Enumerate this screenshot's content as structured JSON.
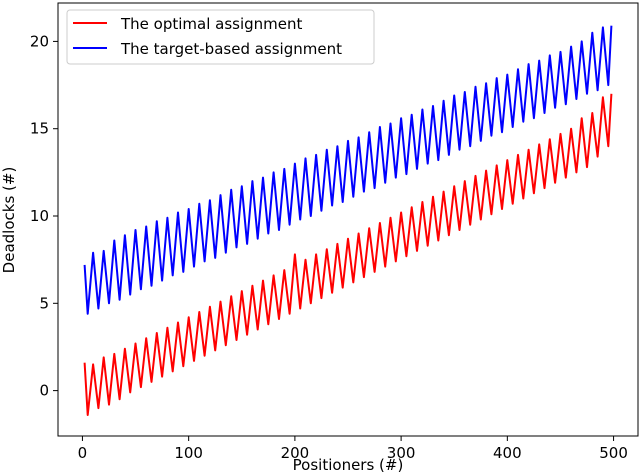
{
  "chart_data": {
    "type": "line",
    "title": "",
    "xlabel": "Positioners (#)",
    "ylabel": "Deadlocks (#)",
    "xlim": [
      -23,
      523
    ],
    "ylim": [
      -2.6,
      22.2
    ],
    "xticks": [
      0,
      100,
      200,
      300,
      400,
      500
    ],
    "yticks": [
      0,
      5,
      10,
      15,
      20
    ],
    "grid": false,
    "legend_position": "upper left",
    "series": [
      {
        "name": "The optimal assignment",
        "color": "#ff0000",
        "x": [
          2,
          5,
          10,
          15,
          20,
          25,
          30,
          35,
          40,
          45,
          50,
          55,
          60,
          65,
          70,
          75,
          80,
          85,
          90,
          95,
          100,
          105,
          110,
          115,
          120,
          125,
          130,
          135,
          140,
          145,
          150,
          155,
          160,
          165,
          170,
          175,
          180,
          185,
          190,
          195,
          200,
          205,
          210,
          215,
          220,
          225,
          230,
          235,
          240,
          245,
          250,
          255,
          260,
          265,
          270,
          275,
          280,
          285,
          290,
          295,
          300,
          305,
          310,
          315,
          320,
          325,
          330,
          335,
          340,
          345,
          350,
          355,
          360,
          365,
          370,
          375,
          380,
          385,
          390,
          395,
          400,
          405,
          410,
          415,
          420,
          425,
          430,
          435,
          440,
          445,
          450,
          455,
          460,
          465,
          470,
          475,
          480,
          485,
          490,
          495,
          498
        ],
        "values": [
          1.6,
          -1.4,
          1.5,
          -1.0,
          1.9,
          -0.8,
          2.1,
          -0.5,
          2.4,
          -0.1,
          2.7,
          0.2,
          3.0,
          0.5,
          3.3,
          0.8,
          3.6,
          1.1,
          3.9,
          1.4,
          4.2,
          1.7,
          4.5,
          2.0,
          4.8,
          2.3,
          5.1,
          2.6,
          5.4,
          2.9,
          5.7,
          3.2,
          6.0,
          3.5,
          6.3,
          3.8,
          6.6,
          4.1,
          6.9,
          4.4,
          7.8,
          4.7,
          7.5,
          5.0,
          7.8,
          5.3,
          8.1,
          5.6,
          8.4,
          5.9,
          8.7,
          6.2,
          9.0,
          6.5,
          9.3,
          6.8,
          9.6,
          7.1,
          9.9,
          7.4,
          10.2,
          7.7,
          10.5,
          8.0,
          10.8,
          8.3,
          11.1,
          8.6,
          11.4,
          8.9,
          11.7,
          9.2,
          12.0,
          9.5,
          12.3,
          9.8,
          12.6,
          10.1,
          12.9,
          10.4,
          13.2,
          10.7,
          13.5,
          11.0,
          13.8,
          11.3,
          14.1,
          11.6,
          14.4,
          11.9,
          14.7,
          12.2,
          15.0,
          12.5,
          15.6,
          12.8,
          15.9,
          13.4,
          16.8,
          14.0,
          17.0
        ]
      },
      {
        "name": "The target-based assignment",
        "color": "#0000ff",
        "x": [
          2,
          5,
          10,
          15,
          20,
          25,
          30,
          35,
          40,
          45,
          50,
          55,
          60,
          65,
          70,
          75,
          80,
          85,
          90,
          95,
          100,
          105,
          110,
          115,
          120,
          125,
          130,
          135,
          140,
          145,
          150,
          155,
          160,
          165,
          170,
          175,
          180,
          185,
          190,
          195,
          200,
          205,
          210,
          215,
          220,
          225,
          230,
          235,
          240,
          245,
          250,
          255,
          260,
          265,
          270,
          275,
          280,
          285,
          290,
          295,
          300,
          305,
          310,
          315,
          320,
          325,
          330,
          335,
          340,
          345,
          350,
          355,
          360,
          365,
          370,
          375,
          380,
          385,
          390,
          395,
          400,
          405,
          410,
          415,
          420,
          425,
          430,
          435,
          440,
          445,
          450,
          455,
          460,
          465,
          470,
          475,
          480,
          485,
          490,
          495,
          498
        ],
        "values": [
          7.2,
          4.4,
          7.9,
          4.7,
          8.0,
          5.0,
          8.6,
          5.2,
          8.9,
          5.5,
          9.2,
          5.8,
          9.4,
          6.0,
          9.7,
          6.3,
          9.9,
          6.6,
          10.2,
          6.8,
          10.4,
          7.1,
          10.7,
          7.4,
          10.9,
          7.6,
          11.2,
          7.9,
          11.5,
          8.2,
          11.7,
          8.4,
          12.0,
          8.7,
          12.2,
          9.0,
          12.5,
          9.2,
          12.7,
          9.5,
          13.0,
          9.8,
          13.3,
          10.0,
          13.5,
          10.3,
          13.8,
          10.6,
          14.0,
          10.8,
          14.3,
          11.1,
          14.5,
          11.4,
          14.8,
          11.6,
          15.1,
          11.9,
          15.3,
          12.2,
          15.6,
          12.4,
          15.8,
          12.7,
          16.1,
          13.0,
          16.3,
          13.2,
          16.6,
          13.5,
          16.9,
          13.8,
          17.1,
          14.0,
          17.4,
          14.3,
          17.6,
          14.6,
          17.9,
          14.8,
          18.1,
          15.1,
          18.4,
          15.4,
          18.7,
          15.6,
          18.9,
          15.9,
          19.2,
          16.2,
          19.4,
          16.4,
          19.7,
          16.7,
          20.0,
          17.0,
          20.5,
          17.2,
          20.8,
          17.5,
          20.9
        ]
      }
    ]
  },
  "legend": {
    "items": [
      {
        "label": "The optimal assignment",
        "color": "#ff0000"
      },
      {
        "label": "The target-based assignment",
        "color": "#0000ff"
      }
    ]
  },
  "axes": {
    "xlabel": "Positioners (#)",
    "ylabel": "Deadlocks (#)",
    "xtick_labels": [
      "0",
      "100",
      "200",
      "300",
      "400",
      "500"
    ],
    "ytick_labels": [
      "0",
      "5",
      "10",
      "15",
      "20"
    ]
  }
}
